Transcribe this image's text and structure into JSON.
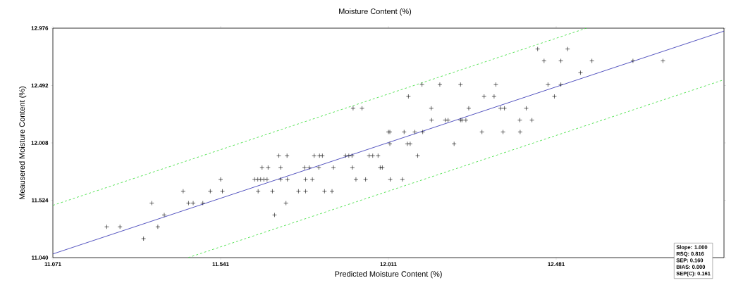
{
  "chart_data": {
    "type": "scatter",
    "title": "Moisture Content (%)",
    "xlabel": "Predicted Moisture Content (%)",
    "ylabel": "Meausered Moisture Content (%)",
    "xlim": [
      11.071,
      12.951
    ],
    "ylim": [
      11.04,
      12.976
    ],
    "xticks": [
      11.071,
      11.541,
      12.011,
      12.481
    ],
    "yticks": [
      {
        "value": 11.04,
        "label": "11.040"
      },
      11.524,
      12.008,
      12.492,
      12.976
    ],
    "grid": false,
    "legend": false,
    "annotations": [
      "Slope: 1.000",
      "RSQ: 0.816",
      "SEP: 0.160",
      "BIAS: 0.000",
      "SEP(C): 0.161"
    ],
    "series": [
      {
        "color": "#000000",
        "marker": "cross",
        "x": [
          11.222,
          11.259,
          11.365,
          11.325,
          11.348,
          11.451,
          11.464,
          11.491,
          11.724,
          11.383,
          11.692,
          11.436,
          11.512,
          11.546,
          11.646,
          11.686,
          11.759,
          11.779,
          11.832,
          11.853,
          11.541,
          11.636,
          11.645,
          11.653,
          11.662,
          11.671,
          11.709,
          11.728,
          11.779,
          11.798,
          11.92,
          11.947,
          12.016,
          12.05,
          11.657,
          11.674,
          11.709,
          11.776,
          11.789,
          11.816,
          11.857,
          11.91,
          11.988,
          11.994,
          11.704,
          11.727,
          11.803,
          11.818,
          11.826,
          11.891,
          11.9,
          11.909,
          11.957,
          11.967,
          11.982,
          12.093,
          12.015,
          12.064,
          12.072,
          12.195,
          12.011,
          12.015,
          12.055,
          12.085,
          12.107,
          12.273,
          12.332,
          12.38,
          12.132,
          12.17,
          12.178,
          12.213,
          12.217,
          12.228,
          12.379,
          12.413,
          11.912,
          11.937,
          12.131,
          12.236,
          12.325,
          12.336,
          12.397,
          12.067,
          12.279,
          12.307,
          12.476,
          12.105,
          12.155,
          12.213,
          12.312,
          12.458,
          12.494,
          12.549,
          12.447,
          12.494,
          12.581,
          12.696,
          12.78,
          12.429,
          12.513
        ],
        "values": [
          11.3,
          11.3,
          11.3,
          11.2,
          11.5,
          11.5,
          11.5,
          11.5,
          11.5,
          11.4,
          11.4,
          11.6,
          11.6,
          11.6,
          11.6,
          11.6,
          11.6,
          11.6,
          11.6,
          11.6,
          11.7,
          11.7,
          11.7,
          11.7,
          11.7,
          11.7,
          11.7,
          11.7,
          11.7,
          11.7,
          11.7,
          11.7,
          11.7,
          11.7,
          11.8,
          11.8,
          11.8,
          11.8,
          11.8,
          11.8,
          11.8,
          11.8,
          11.8,
          11.8,
          11.9,
          11.9,
          11.9,
          11.9,
          11.9,
          11.9,
          11.9,
          11.9,
          11.9,
          11.9,
          11.9,
          11.9,
          12.0,
          12.0,
          12.0,
          12.0,
          12.1,
          12.1,
          12.1,
          12.1,
          12.1,
          12.1,
          12.1,
          12.1,
          12.2,
          12.2,
          12.2,
          12.2,
          12.2,
          12.2,
          12.2,
          12.2,
          12.3,
          12.3,
          12.3,
          12.3,
          12.3,
          12.3,
          12.3,
          12.4,
          12.4,
          12.4,
          12.4,
          12.5,
          12.5,
          12.5,
          12.5,
          12.5,
          12.5,
          12.6,
          12.7,
          12.7,
          12.7,
          12.7,
          12.7,
          12.8,
          12.8
        ]
      },
      {
        "type": "line",
        "color": "#2a2ab0",
        "line_style": "solid",
        "x": [
          11.071,
          12.951
        ],
        "values": [
          11.071,
          12.951
        ]
      },
      {
        "type": "line",
        "color": "#33dd33",
        "line_style": "dashed",
        "x": [
          11.071,
          12.566
        ],
        "values": [
          11.481,
          12.976
        ]
      },
      {
        "type": "line",
        "color": "#33dd33",
        "line_style": "dashed",
        "x": [
          11.45,
          12.951
        ],
        "values": [
          11.04,
          12.541
        ]
      }
    ]
  }
}
